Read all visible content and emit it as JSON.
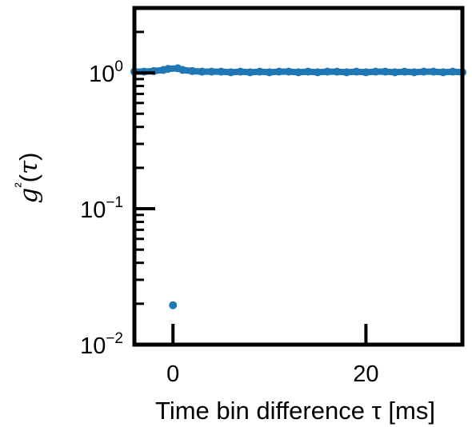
{
  "chart_data": {
    "type": "scatter",
    "title": "",
    "xlabel": "Time bin difference τ [ms]",
    "ylabel": "g²(τ)",
    "xlim": [
      -4,
      30
    ],
    "ylim": [
      0.01,
      3.0
    ],
    "yscale": "log",
    "grid": false,
    "x_ticks": [
      {
        "value": 0,
        "label": "0"
      },
      {
        "value": 20,
        "label": "20"
      }
    ],
    "y_ticks": [
      {
        "value": 1,
        "base": "10",
        "exp": "0"
      },
      {
        "value": 0.1,
        "base": "10",
        "exp": "−1"
      },
      {
        "value": 0.01,
        "base": "10",
        "exp": "−2"
      }
    ],
    "series": [
      {
        "color": "#1f77b4",
        "x": [
          -4,
          -3,
          -2,
          -1,
          -0.5,
          0,
          0.5,
          1,
          2,
          3,
          4,
          5,
          6,
          7,
          8,
          9,
          10,
          11,
          12,
          13,
          14,
          15,
          16,
          17,
          18,
          19,
          20,
          21,
          22,
          23,
          24,
          25,
          26,
          27,
          28,
          29,
          30
        ],
        "y": [
          1.02,
          1.02,
          1.03,
          1.05,
          1.07,
          0.0195,
          1.08,
          1.05,
          1.03,
          1.02,
          1.02,
          1.02,
          1.01,
          1.02,
          1.01,
          1.02,
          1.01,
          1.02,
          1.02,
          1.01,
          1.02,
          1.01,
          1.02,
          1.02,
          1.01,
          1.02,
          1.01,
          1.02,
          1.02,
          1.01,
          1.02,
          1.01,
          1.02,
          1.02,
          1.01,
          1.02,
          1.01
        ]
      }
    ]
  }
}
